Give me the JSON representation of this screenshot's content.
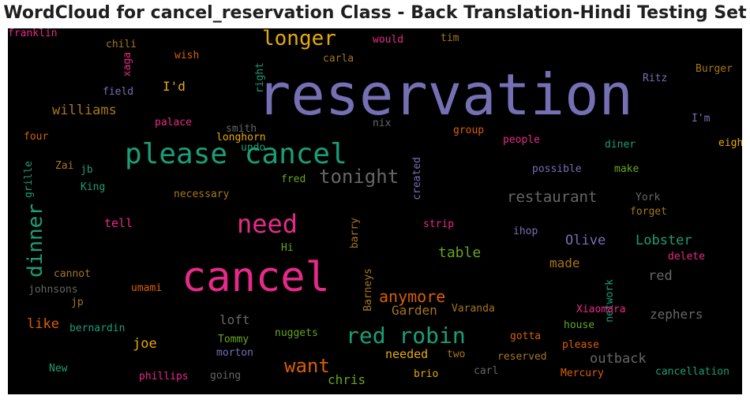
{
  "title": "WordCloud for cancel_reservation Class - Back Translation-Hindi Testing Set",
  "chart_data": {
    "type": "wordcloud",
    "background": "#000000",
    "words": [
      {
        "text": "reservation",
        "color": "#7570b3",
        "vertical": false
      },
      {
        "text": "cancel",
        "color": "#e7298a",
        "vertical": false
      },
      {
        "text": "please cancel",
        "color": "#1b9e77",
        "vertical": false
      },
      {
        "text": "need",
        "color": "#e7298a",
        "vertical": false
      },
      {
        "text": "longer",
        "color": "#e6ab02",
        "vertical": false
      },
      {
        "text": "red robin",
        "color": "#1b9e77",
        "vertical": false
      },
      {
        "text": "tonight",
        "color": "#666666",
        "vertical": false
      },
      {
        "text": "dinner",
        "color": "#1b9e77",
        "vertical": true
      },
      {
        "text": "want",
        "color": "#d95f02",
        "vertical": false
      },
      {
        "text": "anymore",
        "color": "#d95f02",
        "vertical": false
      },
      {
        "text": "restaurant",
        "color": "#666666",
        "vertical": false
      },
      {
        "text": "table",
        "color": "#66a61e",
        "vertical": false
      },
      {
        "text": "williams",
        "color": "#a6761d",
        "vertical": false
      },
      {
        "text": "Lobster",
        "color": "#1b9e77",
        "vertical": false
      },
      {
        "text": "Olive",
        "color": "#7570b3",
        "vertical": false
      },
      {
        "text": "Garden",
        "color": "#a6761d",
        "vertical": false
      },
      {
        "text": "chris",
        "color": "#66a61e",
        "vertical": false
      },
      {
        "text": "like",
        "color": "#d95f02",
        "vertical": false
      },
      {
        "text": "joe",
        "color": "#e6ab02",
        "vertical": false
      },
      {
        "text": "made",
        "color": "#a6761d",
        "vertical": false
      },
      {
        "text": "outback",
        "color": "#666666",
        "vertical": false
      },
      {
        "text": "zephers",
        "color": "#666666",
        "vertical": false
      },
      {
        "text": "red",
        "color": "#666666",
        "vertical": false
      },
      {
        "text": "loft",
        "color": "#666666",
        "vertical": false
      },
      {
        "text": "needed",
        "color": "#e6ab02",
        "vertical": false
      },
      {
        "text": "I'd",
        "color": "#e6ab02",
        "vertical": false
      },
      {
        "text": "tell",
        "color": "#e7298a",
        "vertical": false
      },
      {
        "text": "wish",
        "color": "#d95f02",
        "vertical": false
      },
      {
        "text": "would",
        "color": "#e7298a",
        "vertical": false
      },
      {
        "text": "tim",
        "color": "#a6761d",
        "vertical": false
      },
      {
        "text": "chili",
        "color": "#a6761d",
        "vertical": false
      },
      {
        "text": "xaga",
        "color": "#e7298a",
        "vertical": true
      },
      {
        "text": "right",
        "color": "#1b9e77",
        "vertical": true
      },
      {
        "text": "carla",
        "color": "#a6761d",
        "vertical": false
      },
      {
        "text": "Ritz",
        "color": "#7570b3",
        "vertical": false
      },
      {
        "text": "Burger",
        "color": "#a6761d",
        "vertical": false
      },
      {
        "text": "field",
        "color": "#7570b3",
        "vertical": false
      },
      {
        "text": "palace",
        "color": "#e7298a",
        "vertical": false
      },
      {
        "text": "smith",
        "color": "#666666",
        "vertical": false
      },
      {
        "text": "nix",
        "color": "#666666",
        "vertical": false
      },
      {
        "text": "group",
        "color": "#d95f02",
        "vertical": false
      },
      {
        "text": "I'm",
        "color": "#7570b3",
        "vertical": false
      },
      {
        "text": "four",
        "color": "#d95f02",
        "vertical": false
      },
      {
        "text": "longhorn",
        "color": "#e6ab02",
        "vertical": false
      },
      {
        "text": "people",
        "color": "#e7298a",
        "vertical": false
      },
      {
        "text": "diner",
        "color": "#1b9e77",
        "vertical": false
      },
      {
        "text": "eight",
        "color": "#e6ab02",
        "vertical": false
      },
      {
        "text": "grille",
        "color": "#1b9e77",
        "vertical": true
      },
      {
        "text": "Zai",
        "color": "#a6761d",
        "vertical": false
      },
      {
        "text": "jb",
        "color": "#1b9e77",
        "vertical": false
      },
      {
        "text": "undo",
        "color": "#1b9e77",
        "vertical": false
      },
      {
        "text": "created",
        "color": "#7570b3",
        "vertical": true
      },
      {
        "text": "possible",
        "color": "#7570b3",
        "vertical": false
      },
      {
        "text": "make",
        "color": "#66a61e",
        "vertical": false
      },
      {
        "text": "King",
        "color": "#1b9e77",
        "vertical": false
      },
      {
        "text": "fred",
        "color": "#66a61e",
        "vertical": false
      },
      {
        "text": "York",
        "color": "#666666",
        "vertical": false
      },
      {
        "text": "forget",
        "color": "#a6761d",
        "vertical": false
      },
      {
        "text": "necessary",
        "color": "#a6761d",
        "vertical": false
      },
      {
        "text": "barry",
        "color": "#a6761d",
        "vertical": true
      },
      {
        "text": "strip",
        "color": "#e7298a",
        "vertical": false
      },
      {
        "text": "ihop",
        "color": "#7570b3",
        "vertical": false
      },
      {
        "text": "Hi",
        "color": "#66a61e",
        "vertical": false
      },
      {
        "text": "delete",
        "color": "#e7298a",
        "vertical": false
      },
      {
        "text": "cannot",
        "color": "#a6761d",
        "vertical": false
      },
      {
        "text": "johnsons",
        "color": "#666666",
        "vertical": false
      },
      {
        "text": "umami",
        "color": "#d95f02",
        "vertical": false
      },
      {
        "text": "Barneys",
        "color": "#a6761d",
        "vertical": true
      },
      {
        "text": "network",
        "color": "#1b9e77",
        "vertical": true
      },
      {
        "text": "jp",
        "color": "#a6761d",
        "vertical": false
      },
      {
        "text": "Varanda",
        "color": "#a6761d",
        "vertical": false
      },
      {
        "text": "Xiaomara",
        "color": "#e7298a",
        "vertical": false
      },
      {
        "text": "bernardin",
        "color": "#1b9e77",
        "vertical": false
      },
      {
        "text": "house",
        "color": "#66a61e",
        "vertical": false
      },
      {
        "text": "nuggets",
        "color": "#66a61e",
        "vertical": false
      },
      {
        "text": "Tommy",
        "color": "#66a61e",
        "vertical": false
      },
      {
        "text": "gotta",
        "color": "#d95f02",
        "vertical": false
      },
      {
        "text": "please",
        "color": "#d95f02",
        "vertical": false
      },
      {
        "text": "morton",
        "color": "#7570b3",
        "vertical": false
      },
      {
        "text": "two",
        "color": "#a6761d",
        "vertical": false
      },
      {
        "text": "reserved",
        "color": "#a6761d",
        "vertical": false
      },
      {
        "text": "New",
        "color": "#1b9e77",
        "vertical": false
      },
      {
        "text": "phillips",
        "color": "#e7298a",
        "vertical": false
      },
      {
        "text": "going",
        "color": "#666666",
        "vertical": false
      },
      {
        "text": "brio",
        "color": "#e6ab02",
        "vertical": false
      },
      {
        "text": "carl",
        "color": "#666666",
        "vertical": false
      },
      {
        "text": "Mercury",
        "color": "#d95f02",
        "vertical": false
      },
      {
        "text": "cancellation",
        "color": "#1b9e77",
        "vertical": false
      },
      {
        "text": "franklin",
        "color": "#e7298a",
        "vertical": false
      }
    ]
  }
}
